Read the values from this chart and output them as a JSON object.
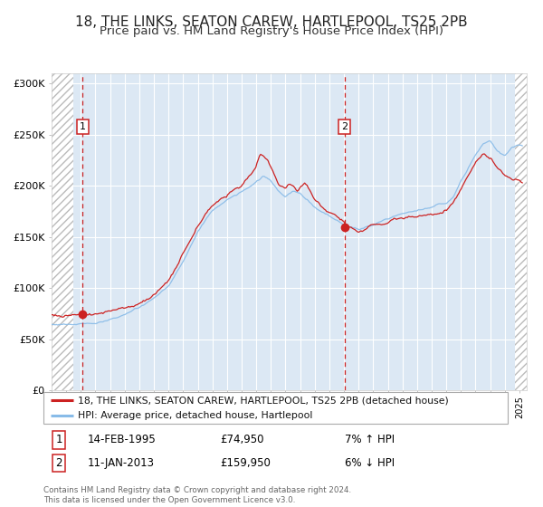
{
  "title": "18, THE LINKS, SEATON CAREW, HARTLEPOOL, TS25 2PB",
  "subtitle": "Price paid vs. HM Land Registry's House Price Index (HPI)",
  "legend_line1": "18, THE LINKS, SEATON CAREW, HARTLEPOOL, TS25 2PB (detached house)",
  "legend_line2": "HPI: Average price, detached house, Hartlepool",
  "annotation1_label": "1",
  "annotation1_date": "14-FEB-1995",
  "annotation1_price": "£74,950",
  "annotation1_hpi": "7% ↑ HPI",
  "annotation2_label": "2",
  "annotation2_date": "11-JAN-2013",
  "annotation2_price": "£159,950",
  "annotation2_hpi": "6% ↓ HPI",
  "footer": "Contains HM Land Registry data © Crown copyright and database right 2024.\nThis data is licensed under the Open Government Licence v3.0.",
  "sale1_year": 1995.12,
  "sale1_price": 74950,
  "sale2_year": 2013.04,
  "sale2_price": 159950,
  "ylim_min": 0,
  "ylim_max": 310000,
  "xlim_min": 1993.0,
  "xlim_max": 2025.5,
  "bg_color": "#dce8f4",
  "hatch_bg": "#ffffff",
  "red_line_color": "#cc2222",
  "blue_line_color": "#88bbe8",
  "dashed_line_color": "#cc2222",
  "grid_color": "#ffffff",
  "title_fontsize": 11,
  "subtitle_fontsize": 9.5,
  "ytick_labels": [
    "£0",
    "£50K",
    "£100K",
    "£150K",
    "£200K",
    "£250K",
    "£300K"
  ],
  "ytick_values": [
    0,
    50000,
    100000,
    150000,
    200000,
    250000,
    300000
  ]
}
